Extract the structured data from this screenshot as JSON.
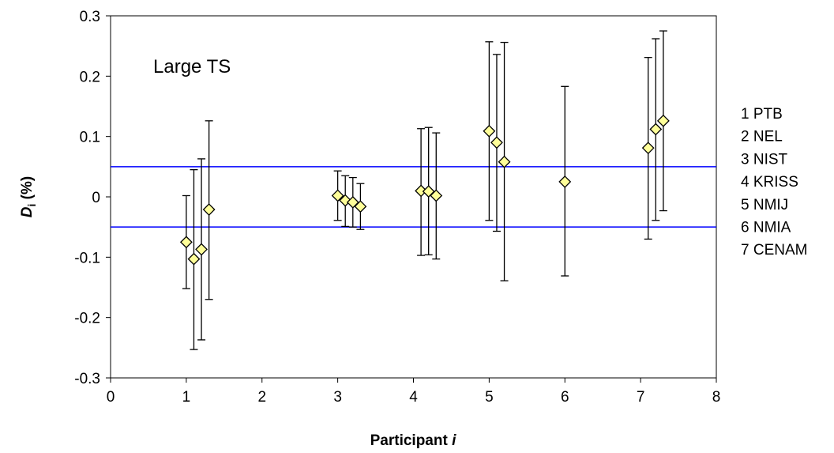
{
  "chart_data": {
    "type": "scatter",
    "annotation": "Large TS",
    "xlabel": {
      "main": "Participant ",
      "var": "i"
    },
    "ylabel": {
      "main": "D",
      "sub": "i",
      "unit": " (%)"
    },
    "xlim": [
      0,
      8
    ],
    "ylim": [
      -0.3,
      0.3
    ],
    "x_ticks": [
      0,
      1,
      2,
      3,
      4,
      5,
      6,
      7,
      8
    ],
    "y_ticks": [
      -0.3,
      -0.2,
      -0.1,
      0,
      0.1,
      0.2,
      0.3
    ],
    "x_tick_labels": [
      "0",
      "1",
      "2",
      "3",
      "4",
      "5",
      "6",
      "7",
      "8"
    ],
    "y_tick_labels": [
      "-0.3",
      "-0.2",
      "-0.1",
      "0",
      "0.1",
      "0.2",
      "0.3"
    ],
    "reference_lines": [
      0.05,
      -0.05
    ],
    "points": [
      {
        "x": 1.0,
        "y": -0.075,
        "lo": -0.152,
        "hi": 0.002
      },
      {
        "x": 1.1,
        "y": -0.103,
        "lo": -0.253,
        "hi": 0.045
      },
      {
        "x": 1.2,
        "y": -0.087,
        "lo": -0.237,
        "hi": 0.063
      },
      {
        "x": 1.3,
        "y": -0.021,
        "lo": -0.17,
        "hi": 0.126
      },
      {
        "x": 3.0,
        "y": 0.002,
        "lo": -0.039,
        "hi": 0.043
      },
      {
        "x": 3.1,
        "y": -0.006,
        "lo": -0.049,
        "hi": 0.035
      },
      {
        "x": 3.2,
        "y": -0.009,
        "lo": -0.05,
        "hi": 0.032
      },
      {
        "x": 3.3,
        "y": -0.016,
        "lo": -0.054,
        "hi": 0.022
      },
      {
        "x": 4.1,
        "y": 0.01,
        "lo": -0.097,
        "hi": 0.113
      },
      {
        "x": 4.2,
        "y": 0.009,
        "lo": -0.096,
        "hi": 0.115
      },
      {
        "x": 4.3,
        "y": 0.002,
        "lo": -0.103,
        "hi": 0.106
      },
      {
        "x": 5.0,
        "y": 0.109,
        "lo": -0.039,
        "hi": 0.257
      },
      {
        "x": 5.1,
        "y": 0.09,
        "lo": -0.057,
        "hi": 0.236
      },
      {
        "x": 5.2,
        "y": 0.058,
        "lo": -0.139,
        "hi": 0.256
      },
      {
        "x": 6.0,
        "y": 0.025,
        "lo": -0.131,
        "hi": 0.183
      },
      {
        "x": 7.1,
        "y": 0.081,
        "lo": -0.07,
        "hi": 0.231
      },
      {
        "x": 7.2,
        "y": 0.112,
        "lo": -0.039,
        "hi": 0.262
      },
      {
        "x": 7.3,
        "y": 0.126,
        "lo": -0.023,
        "hi": 0.275
      }
    ],
    "legend": [
      "1 PTB",
      "2 NEL",
      "3 NIST",
      "4 KRISS",
      "5 NMIJ",
      "6 NMIA",
      "7 CENAM"
    ],
    "colors": {
      "reference_line": "#0000FF",
      "marker_fill": "#FFFF99",
      "marker_stroke": "#000000"
    },
    "marker": "diamond",
    "grid": false
  }
}
